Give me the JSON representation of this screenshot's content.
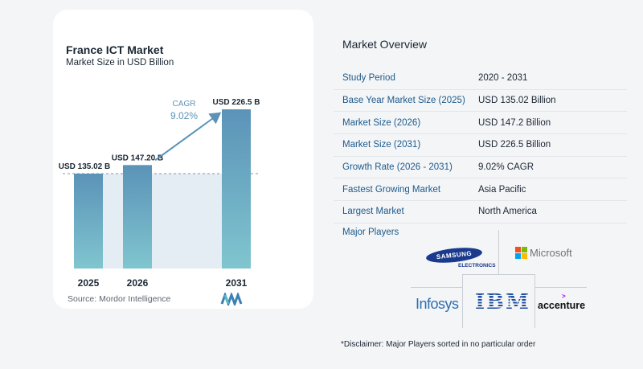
{
  "chart": {
    "title": "France ICT Market",
    "subtitle": "Market Size in USD Billion",
    "source": "Source:  Mordor Intelligence",
    "cagr_label": "CAGR",
    "cagr_value": "9.02%"
  },
  "chart_data": {
    "type": "bar",
    "title": "France ICT Market",
    "subtitle": "Market Size in USD Billion",
    "categories": [
      "2025",
      "2026",
      "2031"
    ],
    "values": [
      135.02,
      147.2,
      226.5
    ],
    "data_labels": [
      "USD 135.02 B",
      "USD 147.20 B",
      "USD 226.5 B"
    ],
    "annotation": "CAGR 9.02%",
    "colors": {
      "bar_top": "#5b93b8",
      "bar_bottom": "#80c5cf",
      "band": "#e5edf4",
      "arrow": "#5b93b8"
    }
  },
  "overview": {
    "title": "Market Overview",
    "rows": [
      {
        "key": "Study Period",
        "value": "2020 - 2031"
      },
      {
        "key": "Base Year Market Size (2025)",
        "value": "USD 135.02 Billion"
      },
      {
        "key": "Market Size (2026)",
        "value": "USD 147.2 Billion"
      },
      {
        "key": "Market Size (2031)",
        "value": "USD 226.5 Billion"
      },
      {
        "key": "Growth Rate (2026 - 2031)",
        "value": "9.02% CAGR"
      },
      {
        "key": "Fastest Growing Market",
        "value": "Asia Pacific"
      },
      {
        "key": "Largest Market",
        "value": "North America"
      }
    ]
  },
  "players": {
    "title": "Major Players",
    "logos": {
      "samsung": "SAMSUNG",
      "samsung_sub": "ELECTRONICS",
      "microsoft": "Microsoft",
      "infosys": "Infosys",
      "ibm": "IBM",
      "accenture": "accenture"
    }
  },
  "disclaimer": "*Disclaimer: Major Players sorted in no particular order"
}
